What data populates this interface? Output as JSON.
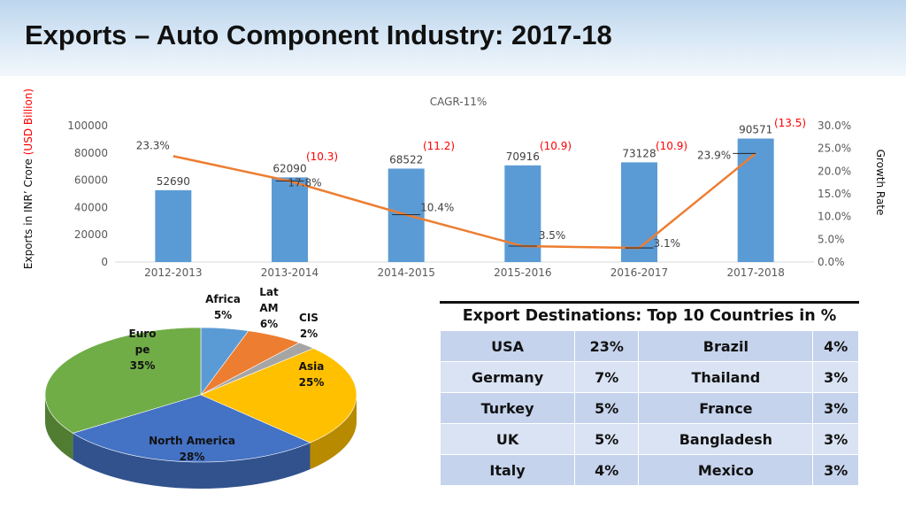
{
  "page": {
    "title": "Exports – Auto Component Industry: 2017-18"
  },
  "chart_data": [
    {
      "type": "bar",
      "title": "CAGR-11%",
      "ylabel_prefix": "Exports in INR’ Crore ",
      "ylabel_highlight": "(USD Billion)",
      "y2label": "Growth Rate",
      "categories": [
        "2012-2013",
        "2013-2014",
        "2014-2015",
        "2015-2016",
        "2016-2017",
        "2017-2018"
      ],
      "series": [
        {
          "values": [
            52690,
            62090,
            68522,
            70916,
            73128,
            90571
          ],
          "color": "#5b9bd5",
          "axis": "left"
        },
        {
          "type": "line",
          "values": [
            23.3,
            17.8,
            10.4,
            3.5,
            3.1,
            23.9
          ],
          "labels": [
            "23.3%",
            "17.8%",
            "10.4%",
            "3.5%",
            "3.1%",
            "23.9%"
          ],
          "color": "#ed7d31",
          "axis": "right"
        }
      ],
      "usd_labels": [
        "",
        "(10.3)",
        "(11.2)",
        "(10.9)",
        "(10.9)",
        "(13.5)"
      ],
      "usd_color": "#ff0000",
      "ylim": [
        0,
        100000
      ],
      "yticks": [
        "0",
        "20000",
        "40000",
        "60000",
        "80000",
        "100000"
      ],
      "y2lim": [
        0,
        30
      ],
      "y2ticks": [
        "0.0%",
        "5.0%",
        "10.0%",
        "15.0%",
        "20.0%",
        "25.0%",
        "30.0%"
      ],
      "grid": false,
      "legend": "none"
    },
    {
      "type": "pie",
      "slices": [
        {
          "label": "Africa",
          "pct_label": "5%",
          "value": 5,
          "color": "#5b9bd5"
        },
        {
          "label": "Lat AM",
          "pct_label": "6%",
          "value": 6,
          "color": "#ed7d31"
        },
        {
          "label": "CIS",
          "pct_label": "2%",
          "value": 2,
          "color": "#a5a5a5"
        },
        {
          "label": "Asia",
          "pct_label": "25%",
          "value": 25,
          "color": "#ffc000"
        },
        {
          "label": "North America",
          "pct_label": "28%",
          "value": 28,
          "color": "#4472c4"
        },
        {
          "label": "Europe",
          "pct_label": "35%",
          "value": 35,
          "color": "#70ad47"
        }
      ],
      "europe_label_lines": [
        "Euro",
        "pe"
      ],
      "latam_label_lines": [
        "Lat",
        "AM"
      ],
      "legend": "none"
    }
  ],
  "table": {
    "title": "Export Destinations: Top 10 Countries in %",
    "rows": [
      [
        "USA",
        "23%",
        "Brazil",
        "4%"
      ],
      [
        "Germany",
        "7%",
        "Thailand",
        "3%"
      ],
      [
        "Turkey",
        "5%",
        "France",
        "3%"
      ],
      [
        "UK",
        "5%",
        "Bangladesh",
        "3%"
      ],
      [
        "Italy",
        "4%",
        "Mexico",
        "3%"
      ]
    ]
  }
}
